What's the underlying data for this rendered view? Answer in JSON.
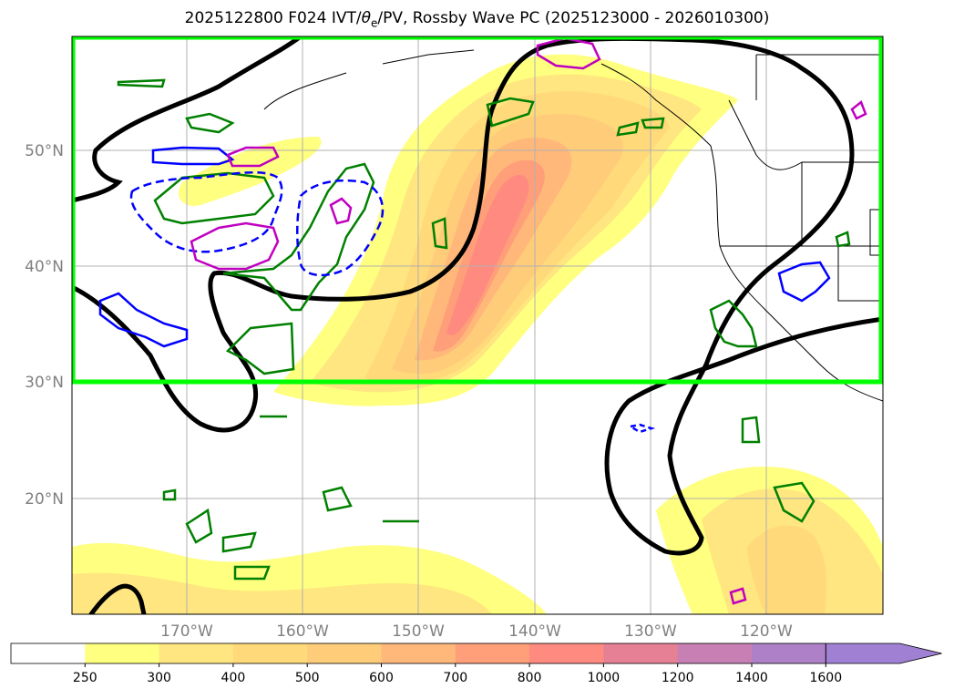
{
  "title": {
    "prefix": "2025122800 F024 IVT/",
    "theta": "θ",
    "sub": "e",
    "suffix": "/PV, Rossby Wave PC (2025123000 - 2026010300)"
  },
  "map": {
    "lon_labels": [
      "170°W",
      "160°W",
      "150°W",
      "140°W",
      "130°W",
      "120°W"
    ],
    "lat_labels": [
      "50°N",
      "40°N",
      "30°N",
      "20°N"
    ],
    "highlight_box": {
      "lat_min": 30,
      "lat_max": 60,
      "color": "#00ff00"
    }
  },
  "colorbar": {
    "levels": [
      "250",
      "300",
      "400",
      "500",
      "600",
      "700",
      "800",
      "1000",
      "1200",
      "1400",
      "1600"
    ],
    "colors": [
      "#ffffff",
      "#ffff80",
      "#ffe680",
      "#ffd97a",
      "#ffcc7a",
      "#ffb87a",
      "#ff9f7a",
      "#ff8a80",
      "#e58095",
      "#c880b4",
      "#ad80c8",
      "#9f80d2"
    ]
  },
  "contour_colors": {
    "ivt_outline": "#000000",
    "green": "#008000",
    "blue": "#0000ff",
    "magenta": "#c000c0"
  }
}
